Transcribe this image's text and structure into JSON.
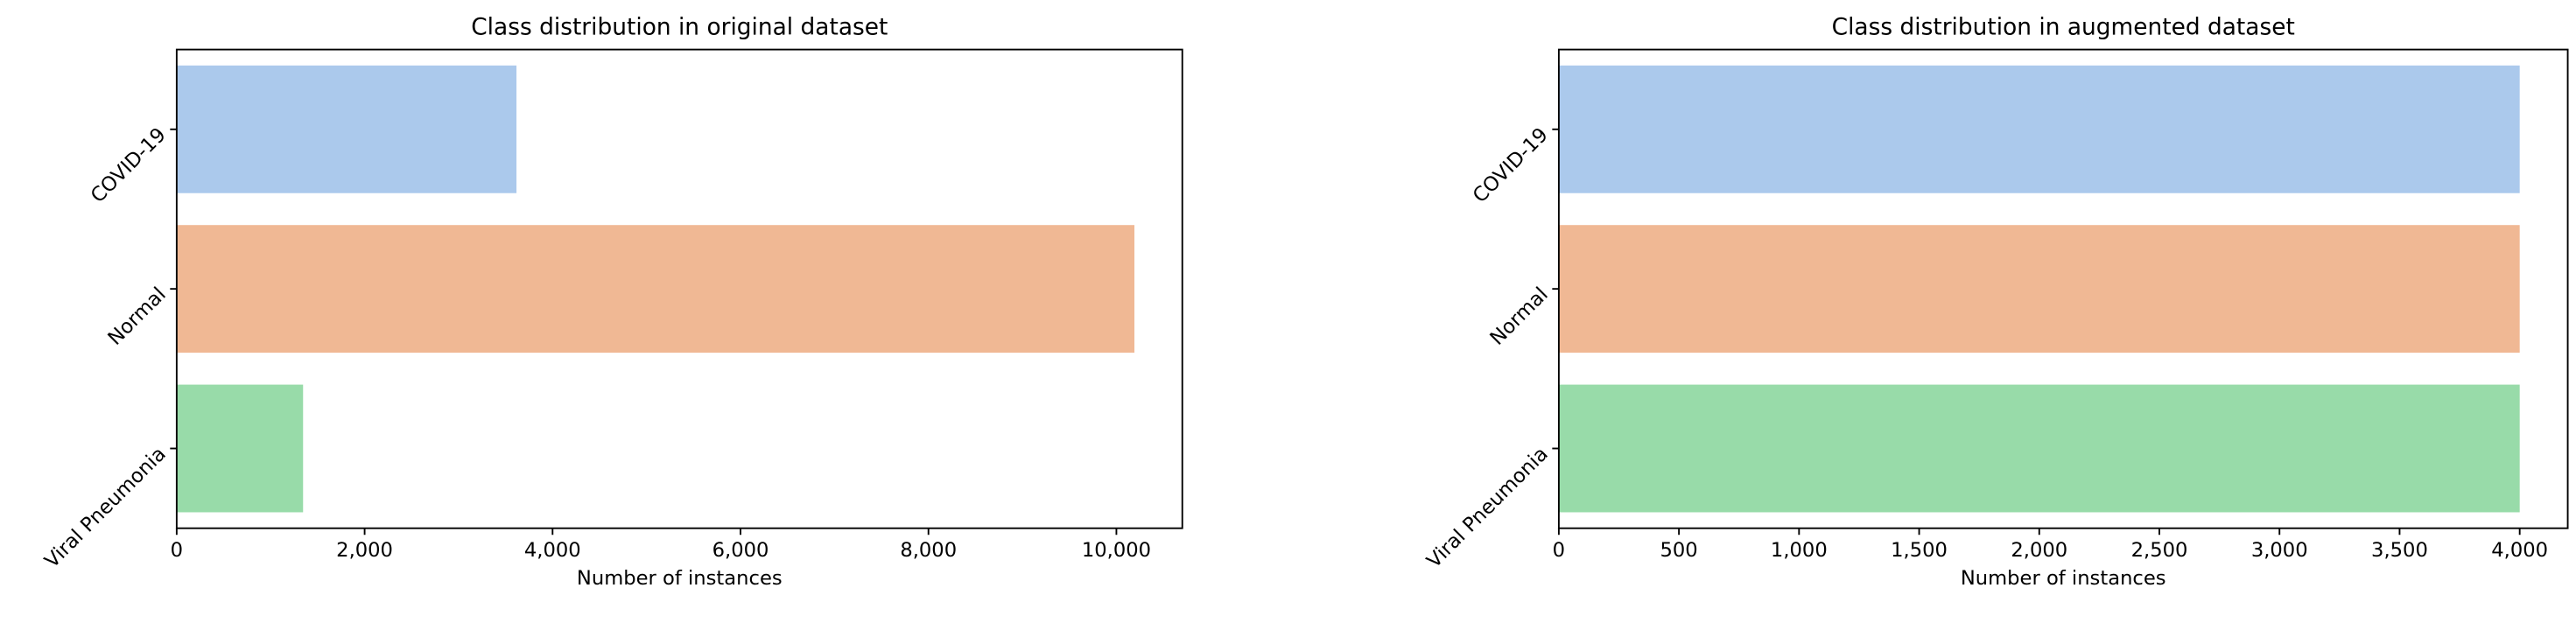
{
  "chart_data": [
    {
      "type": "barh",
      "title": "Class distribution in original dataset",
      "x_label": "Number of instances",
      "categories": [
        "COVID-19",
        "Normal",
        "Viral Pneumonia"
      ],
      "values": [
        3616,
        10192,
        1345
      ],
      "colors": [
        "#abc9ec",
        "#f0b894",
        "#98dba9"
      ],
      "xlim": [
        0,
        10701.6
      ],
      "xticks": [
        0,
        {
          "value": 2000,
          "label": "2,000"
        },
        {
          "value": 4000,
          "label": "4,000"
        },
        {
          "value": 6000,
          "label": "6,000"
        },
        {
          "value": 8000,
          "label": "8,000"
        },
        {
          "value": 10000,
          "label": "10,000"
        }
      ]
    },
    {
      "type": "barh",
      "title": "Class distribution in augmented dataset",
      "x_label": "Number of instances",
      "categories": [
        "COVID-19",
        "Normal",
        "Viral Pneumonia"
      ],
      "values": [
        4000,
        4000,
        4000
      ],
      "colors": [
        "#abc9ec",
        "#f0b894",
        "#98dba9"
      ],
      "xlim": [
        0,
        4200
      ],
      "xticks": [
        0,
        500,
        {
          "value": 1000,
          "label": "1,000"
        },
        {
          "value": 1500,
          "label": "1,500"
        },
        {
          "value": 2000,
          "label": "2,000"
        },
        {
          "value": 2500,
          "label": "2,500"
        },
        {
          "value": 3000,
          "label": "3,000"
        },
        {
          "value": 3500,
          "label": "3,500"
        },
        {
          "value": 4000,
          "label": "4,000"
        }
      ]
    }
  ]
}
